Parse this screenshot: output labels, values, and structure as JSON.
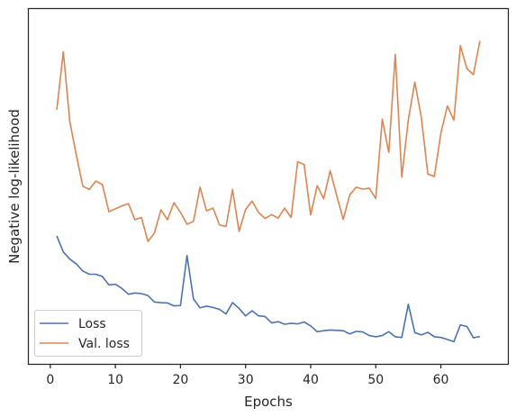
{
  "chart_data": {
    "type": "line",
    "xlabel": "Epochs",
    "ylabel": "Negative log-likelihood",
    "xlim": [
      -3.3,
      70.3
    ],
    "ylim": [
      0,
      1
    ],
    "x_ticks": [
      0,
      10,
      20,
      30,
      40,
      50,
      60
    ],
    "y_ticks_visible": false,
    "grid": false,
    "legend_position": "lower-left",
    "x": [
      1,
      2,
      3,
      4,
      5,
      6,
      7,
      8,
      9,
      10,
      11,
      12,
      13,
      14,
      15,
      16,
      17,
      18,
      19,
      20,
      21,
      22,
      23,
      24,
      25,
      26,
      27,
      28,
      29,
      30,
      31,
      32,
      33,
      34,
      35,
      36,
      37,
      38,
      39,
      40,
      41,
      42,
      43,
      44,
      45,
      46,
      47,
      48,
      49,
      50,
      51,
      52,
      53,
      54,
      55,
      56,
      57,
      58,
      59,
      60,
      61,
      62,
      63,
      64,
      65,
      66
    ],
    "series": [
      {
        "name": "Loss",
        "color": "#4c72b0",
        "values": [
          0.355,
          0.305,
          0.283,
          0.268,
          0.246,
          0.236,
          0.236,
          0.229,
          0.203,
          0.205,
          0.192,
          0.174,
          0.178,
          0.176,
          0.17,
          0.15,
          0.148,
          0.147,
          0.138,
          0.139,
          0.294,
          0.159,
          0.132,
          0.137,
          0.133,
          0.127,
          0.113,
          0.148,
          0.13,
          0.107,
          0.123,
          0.107,
          0.105,
          0.085,
          0.089,
          0.081,
          0.084,
          0.082,
          0.088,
          0.076,
          0.058,
          0.061,
          0.063,
          0.062,
          0.061,
          0.051,
          0.059,
          0.057,
          0.046,
          0.042,
          0.046,
          0.058,
          0.042,
          0.04,
          0.143,
          0.055,
          0.048,
          0.056,
          0.042,
          0.04,
          0.034,
          0.027,
          0.079,
          0.074,
          0.039,
          0.043
        ]
      },
      {
        "name": "Val. loss",
        "color": "#dd8452",
        "values": [
          0.746,
          0.926,
          0.709,
          0.605,
          0.509,
          0.499,
          0.525,
          0.514,
          0.43,
          0.439,
          0.448,
          0.455,
          0.405,
          0.412,
          0.338,
          0.364,
          0.436,
          0.405,
          0.458,
          0.428,
          0.391,
          0.4,
          0.506,
          0.433,
          0.441,
          0.389,
          0.384,
          0.499,
          0.369,
          0.437,
          0.463,
          0.427,
          0.409,
          0.421,
          0.41,
          0.441,
          0.412,
          0.585,
          0.576,
          0.42,
          0.511,
          0.47,
          0.557,
          0.48,
          0.406,
          0.482,
          0.506,
          0.5,
          0.503,
          0.471,
          0.717,
          0.614,
          0.918,
          0.537,
          0.715,
          0.832,
          0.723,
          0.547,
          0.539,
          0.673,
          0.758,
          0.714,
          0.945,
          0.874,
          0.855,
          0.96
        ]
      }
    ]
  }
}
